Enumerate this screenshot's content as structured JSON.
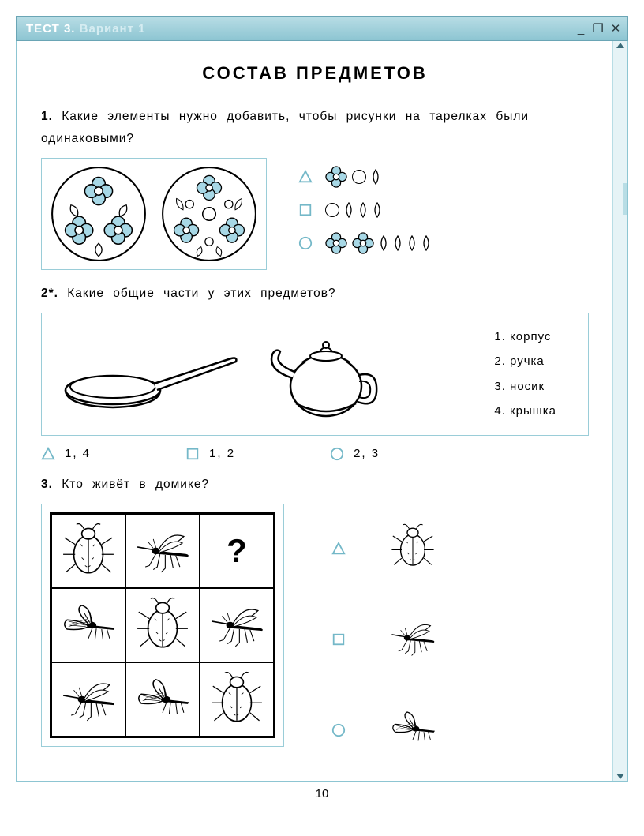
{
  "window": {
    "title_bold": "ТЕСТ 3.",
    "title_rest": "Вариант 1"
  },
  "page_title": "СОСТАВ  ПРЕДМЕТОВ",
  "page_number": "10",
  "colors": {
    "accent_border": "#9acdd8",
    "titlebar_top": "#b8dde5",
    "titlebar_bottom": "#8dc5d2",
    "flower_fill": "#a7d8e6",
    "marker_stroke": "#74b8c8"
  },
  "q1": {
    "num": "1.",
    "text": "Какие элементы нужно добавить, чтобы рисунки на тарелках были одинаковыми?",
    "plate_a": {
      "flowers": 3,
      "small_circles": 0,
      "leaves_between": true
    },
    "plate_b": {
      "flowers": 3,
      "small_circles": 3,
      "leaves_between": true,
      "center_circle": true
    },
    "answers": [
      {
        "marker": "triangle",
        "flowers": 1,
        "circles": 1,
        "leaves": 1
      },
      {
        "marker": "square",
        "flowers": 0,
        "circles": 1,
        "leaves": 3
      },
      {
        "marker": "circle",
        "flowers": 2,
        "circles": 0,
        "leaves": 4
      }
    ]
  },
  "q2": {
    "num": "2*.",
    "text": "Какие общие части у этих предметов?",
    "parts": [
      "1.  корпус",
      "2.  ручка",
      "3.  носик",
      "4.  крышка"
    ],
    "answers": [
      {
        "marker": "triangle",
        "label": "1, 4"
      },
      {
        "marker": "square",
        "label": "1, 2"
      },
      {
        "marker": "circle",
        "label": "2, 3"
      }
    ]
  },
  "q3": {
    "num": "3.",
    "text": "Кто живёт в  домике?",
    "grid": [
      [
        "beetle",
        "mosquito",
        "?"
      ],
      [
        "moth",
        "beetle",
        "mosquito"
      ],
      [
        "mosquito",
        "moth",
        "beetle"
      ]
    ],
    "answers": [
      {
        "marker": "triangle",
        "bug": "beetle"
      },
      {
        "marker": "square",
        "bug": "mosquito"
      },
      {
        "marker": "circle",
        "bug": "moth"
      }
    ]
  }
}
